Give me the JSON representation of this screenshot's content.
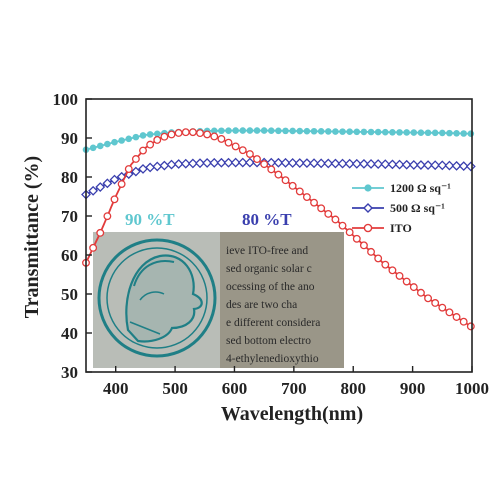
{
  "chart_data": {
    "type": "line",
    "title": "",
    "xlabel": "Wavelength(nm)",
    "ylabel": "Transmittance (%)",
    "xlim": [
      350,
      1000
    ],
    "ylim": [
      30,
      100
    ],
    "xticks": [
      400,
      500,
      600,
      700,
      800,
      900,
      1000
    ],
    "yticks": [
      30,
      40,
      50,
      60,
      70,
      80,
      90,
      100
    ],
    "legend_position": "right",
    "series": [
      {
        "name": "1200 Ω sq⁻¹",
        "color": "#5fc7cf",
        "marker": "circle-filled",
        "x": [
          350,
          400,
          450,
          500,
          550,
          600,
          650,
          700,
          750,
          800,
          850,
          900,
          950,
          1000
        ],
        "values": [
          87,
          89,
          90.8,
          91.5,
          91.8,
          91.9,
          91.9,
          91.8,
          91.7,
          91.6,
          91.5,
          91.4,
          91.3,
          91.1
        ]
      },
      {
        "name": "500 Ω sq⁻¹",
        "color": "#3a3fae",
        "marker": "diamond-open",
        "x": [
          350,
          400,
          450,
          500,
          550,
          600,
          650,
          700,
          750,
          800,
          850,
          900,
          950,
          1000
        ],
        "values": [
          75.5,
          79.5,
          82.3,
          83.3,
          83.6,
          83.7,
          83.7,
          83.6,
          83.5,
          83.4,
          83.3,
          83.1,
          83,
          82.7
        ]
      },
      {
        "name": "ITO",
        "color": "#e23b3b",
        "marker": "circle-open",
        "x": [
          350,
          375,
          400,
          425,
          450,
          475,
          500,
          525,
          550,
          575,
          600,
          625,
          650,
          675,
          700,
          725,
          750,
          775,
          800,
          825,
          850,
          875,
          900,
          925,
          950,
          975,
          1000
        ],
        "values": [
          58,
          66,
          75,
          83,
          87.5,
          90,
          91.2,
          91.6,
          91.1,
          90,
          88,
          86,
          83.3,
          80.5,
          77.5,
          74.5,
          71.5,
          68.5,
          65,
          61.5,
          58,
          55,
          52,
          49,
          46.5,
          44,
          41.5
        ]
      }
    ],
    "annotations": [
      "90 %T",
      "80 %T"
    ],
    "annotation_colors": [
      "#5fc7cf",
      "#3a3fae"
    ]
  },
  "inset_text": {
    "lines": [
      "ieve ITO-free and",
      "sed organic solar c",
      "ocessing of the ano",
      "des   are   two   cha",
      "e different considera",
      "sed   bottom  electro",
      "4-ethylenedioxythio"
    ]
  }
}
